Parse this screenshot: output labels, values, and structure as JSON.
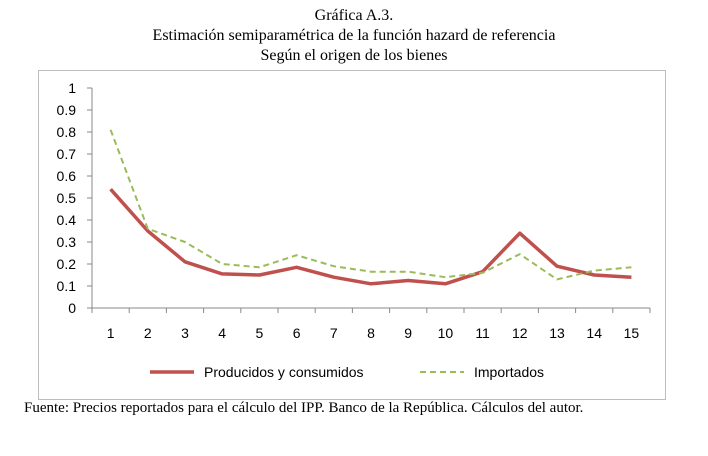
{
  "header": {
    "line1": "Gráfica A.3.",
    "line2": "Estimación semiparamétrica de la función hazard de referencia",
    "line3": "Según el origen de los bienes"
  },
  "source_note": "Fuente: Precios reportados para el cálculo del IPP. Banco de la República. Cálculos del autor.",
  "colors": {
    "series_1": "#c0504d",
    "series_2": "#9bbb59",
    "axis": "#888888",
    "frame": "#bdbdbd"
  },
  "chart_data": {
    "type": "line",
    "title": "Estimación semiparamétrica de la función hazard de referencia",
    "subtitle": "Según el origen de los bienes",
    "xlabel": "",
    "ylabel": "",
    "categories": [
      "1",
      "2",
      "3",
      "4",
      "5",
      "6",
      "7",
      "8",
      "9",
      "10",
      "11",
      "12",
      "13",
      "14",
      "15"
    ],
    "ylim": [
      0,
      1
    ],
    "yticks": [
      "0",
      "0.1",
      "0.2",
      "0.3",
      "0.4",
      "0.5",
      "0.6",
      "0.7",
      "0.8",
      "0.9",
      "1"
    ],
    "grid": false,
    "legend_position": "bottom",
    "series": [
      {
        "name": "Producidos y consumidos",
        "style": "solid",
        "values": [
          0.54,
          0.35,
          0.21,
          0.155,
          0.15,
          0.185,
          0.14,
          0.11,
          0.125,
          0.11,
          0.165,
          0.34,
          0.19,
          0.15,
          0.14
        ]
      },
      {
        "name": "Importados",
        "style": "dashed",
        "values": [
          0.81,
          0.36,
          0.3,
          0.2,
          0.185,
          0.24,
          0.19,
          0.165,
          0.165,
          0.14,
          0.16,
          0.245,
          0.13,
          0.17,
          0.185
        ]
      }
    ]
  }
}
